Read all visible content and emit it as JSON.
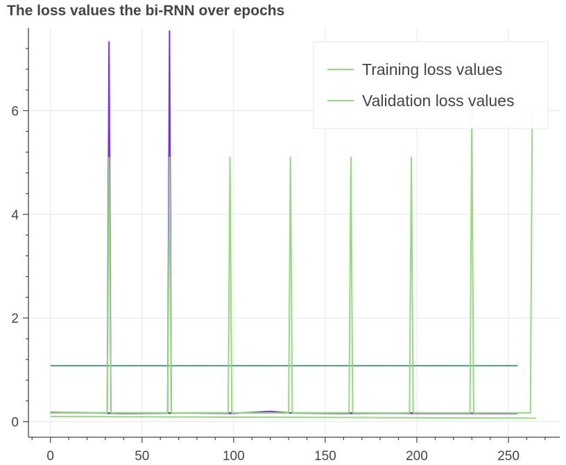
{
  "chart_data": {
    "type": "line",
    "title": "The loss values the bi-RNN over epochs",
    "xlabel": "",
    "ylabel": "",
    "xlim": [
      -12,
      278
    ],
    "ylim": [
      -0.3,
      7.6
    ],
    "x_ticks": [
      0,
      50,
      100,
      150,
      200,
      250
    ],
    "x_tick_labels": [
      "0",
      "50",
      "100",
      "150",
      "200",
      "250"
    ],
    "y_ticks": [
      0,
      2,
      4,
      6
    ],
    "y_tick_labels": [
      "0",
      "2",
      "4",
      "6"
    ],
    "grid": true,
    "legend": {
      "position": "top-right",
      "entries": [
        "Training loss values",
        "Validation loss values"
      ]
    },
    "series": [
      {
        "name": "Training loss values",
        "color": "#7b2ff0",
        "points": [
          [
            0,
            0.17
          ],
          [
            30,
            0.17
          ],
          [
            31,
            0.17
          ],
          [
            32,
            7.33
          ],
          [
            33,
            0.17
          ],
          [
            64,
            0.17
          ],
          [
            65,
            7.54
          ],
          [
            66,
            0.17
          ],
          [
            100,
            0.16
          ],
          [
            120,
            0.2
          ],
          [
            131,
            0.17
          ],
          [
            164,
            0.17
          ],
          [
            200,
            0.16
          ],
          [
            230,
            0.16
          ],
          [
            255,
            0.16
          ]
        ]
      },
      {
        "name": "Validation loss values",
        "color": "#93dc7c",
        "points": [
          [
            0,
            0.17
          ],
          [
            31,
            0.17
          ],
          [
            32,
            5.1
          ],
          [
            33,
            0.17
          ],
          [
            64,
            0.17
          ],
          [
            65,
            5.1
          ],
          [
            66,
            0.17
          ],
          [
            97,
            0.17
          ],
          [
            98,
            5.1
          ],
          [
            99,
            0.17
          ],
          [
            130,
            0.17
          ],
          [
            131,
            5.1
          ],
          [
            132,
            0.17
          ],
          [
            163,
            0.17
          ],
          [
            164,
            5.1
          ],
          [
            165,
            0.17
          ],
          [
            196,
            0.17
          ],
          [
            197,
            5.1
          ],
          [
            198,
            0.17
          ],
          [
            229,
            0.17
          ],
          [
            230,
            6.0
          ],
          [
            231,
            0.17
          ],
          [
            262,
            0.17
          ],
          [
            263,
            6.0
          ]
        ]
      },
      {
        "name": "",
        "color": "#3c1a8c",
        "points": [
          [
            0,
            0.18
          ],
          [
            40,
            0.16
          ],
          [
            80,
            0.17
          ],
          [
            120,
            0.17
          ],
          [
            160,
            0.16
          ],
          [
            200,
            0.17
          ],
          [
            240,
            0.16
          ],
          [
            255,
            0.16
          ]
        ]
      },
      {
        "name": "",
        "color": "#4a9e80",
        "points": [
          [
            0,
            1.08
          ],
          [
            255,
            1.08
          ]
        ]
      },
      {
        "name": "",
        "color": "#93dc7c",
        "points": [
          [
            0,
            0.1
          ],
          [
            265,
            0.07
          ]
        ]
      }
    ]
  }
}
